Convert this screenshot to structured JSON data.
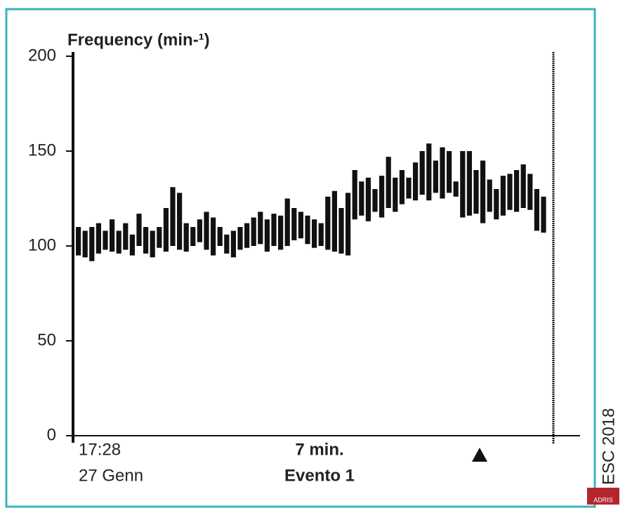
{
  "chart_data": {
    "type": "rangebar",
    "title": "Frequency (min-¹)",
    "lows": [
      95,
      94,
      92,
      96,
      98,
      97,
      96,
      98,
      95,
      100,
      96,
      94,
      99,
      97,
      100,
      98,
      97,
      100,
      102,
      98,
      95,
      100,
      96,
      94,
      98,
      99,
      100,
      101,
      97,
      100,
      98,
      100,
      103,
      104,
      101,
      99,
      100,
      98,
      97,
      96,
      95,
      114,
      116,
      113,
      118,
      115,
      120,
      118,
      122,
      125,
      124,
      127,
      124,
      128,
      125,
      128,
      126,
      115,
      116,
      117,
      112,
      118,
      114,
      116,
      119,
      118,
      120,
      119,
      108,
      107
    ],
    "highs": [
      110,
      108,
      110,
      112,
      108,
      114,
      108,
      112,
      106,
      117,
      110,
      108,
      110,
      120,
      131,
      128,
      112,
      110,
      114,
      118,
      115,
      110,
      106,
      108,
      110,
      112,
      115,
      118,
      114,
      117,
      116,
      125,
      120,
      118,
      116,
      114,
      112,
      126,
      129,
      120,
      128,
      140,
      134,
      136,
      130,
      137,
      147,
      136,
      140,
      136,
      144,
      150,
      154,
      145,
      152,
      150,
      134,
      150,
      150,
      140,
      145,
      135,
      130,
      137,
      138,
      140,
      143,
      138,
      130,
      126
    ],
    "color": "#111111",
    "ylim": [
      0,
      200
    ],
    "yticks": [
      0,
      50,
      100,
      150,
      200
    ],
    "annotations": {
      "start_time": "17:28",
      "start_date": "27 Genn",
      "duration": "7 min.",
      "event": "Evento 1",
      "side_label": "ESC 2018",
      "logo": "ADRIS"
    }
  }
}
